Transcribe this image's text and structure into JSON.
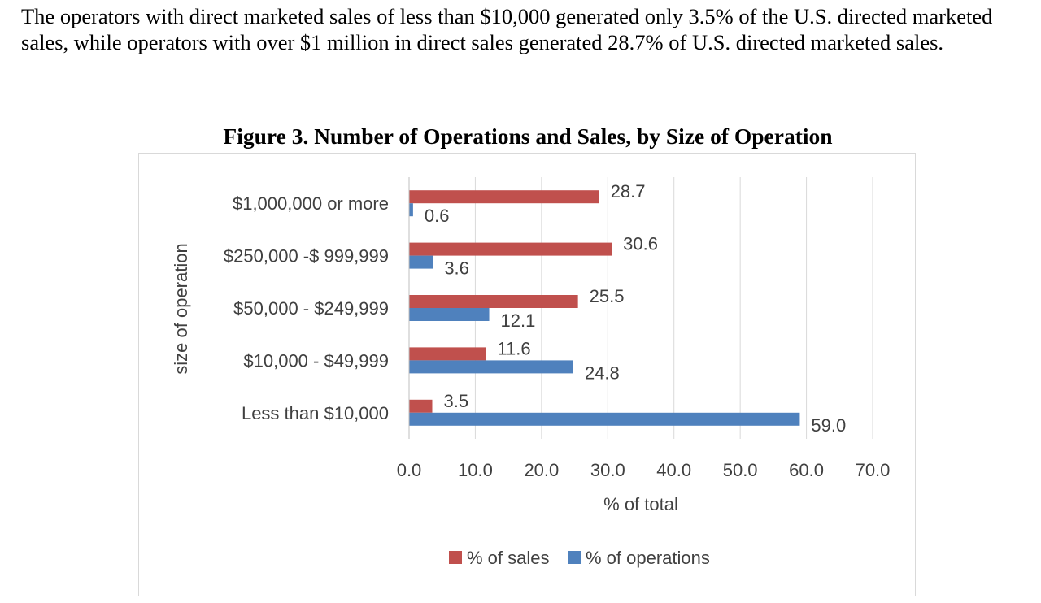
{
  "intro_text": "The operators with direct marketed sales of less than $10,000 generated only 3.5% of the U.S. directed marketed sales, while operators with over $1 million in direct sales generated 28.7% of U.S. directed marketed sales.",
  "figure_title": "Figure 3. Number of Operations and Sales, by Size of Operation",
  "colors": {
    "sales": "#C0504D",
    "operations": "#4F81BD",
    "grid": "#d9d9d9",
    "text": "#404040"
  },
  "chart_data": {
    "type": "bar",
    "orientation": "horizontal",
    "title": "Figure 3. Number of Operations and Sales, by Size of Operation",
    "xlabel": "% of total",
    "ylabel": "size of operation",
    "xlim": [
      0,
      70
    ],
    "xticks": [
      "0.0",
      "10.0",
      "20.0",
      "30.0",
      "40.0",
      "50.0",
      "60.0",
      "70.0"
    ],
    "grid": "vertical",
    "legend": "bottom",
    "categories": [
      "$1,000,000 or more",
      "$250,000 -$ 999,999",
      "$50,000 - $249,999",
      "$10,000 - $49,999",
      "Less than $10,000"
    ],
    "series": [
      {
        "name": "% of sales",
        "values": [
          28.7,
          30.6,
          25.5,
          11.6,
          3.5
        ],
        "labels": [
          "28.7",
          "30.6",
          "25.5",
          "11.6",
          "3.5"
        ]
      },
      {
        "name": "% of operations",
        "values": [
          0.6,
          3.6,
          12.1,
          24.8,
          59.0
        ],
        "labels": [
          "0.6",
          "3.6",
          "12.1",
          "24.8",
          "59.0"
        ]
      }
    ]
  }
}
